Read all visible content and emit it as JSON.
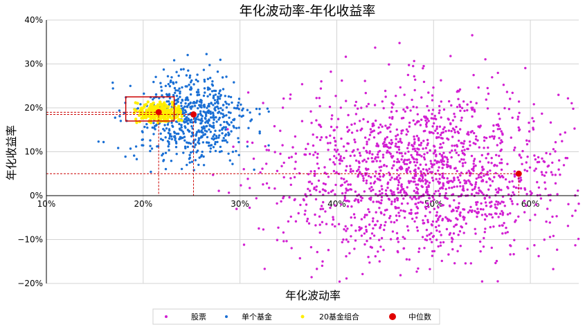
{
  "chart_data": {
    "type": "scatter",
    "title": "年化波动率-年化收益率",
    "xlabel": "年化波动率",
    "ylabel": "年化收益率",
    "xlim": [
      10,
      65
    ],
    "ylim": [
      -20,
      40
    ],
    "x_ticks": [
      10,
      20,
      30,
      40,
      50,
      60
    ],
    "y_ticks": [
      -20,
      -10,
      0,
      10,
      20,
      30,
      40
    ],
    "x_tick_labels": [
      "10%",
      "20%",
      "30%",
      "40%",
      "50%",
      "60%"
    ],
    "y_tick_labels": [
      "−20%",
      "−10%",
      "0%",
      "10%",
      "20%",
      "30%",
      "40%"
    ],
    "grid": true,
    "legend_position": "bottom",
    "series": [
      {
        "name": "股票",
        "color": "#d21fd2",
        "count": 1600,
        "center": [
          49,
          5
        ],
        "spread": [
          7.5,
          9.5
        ],
        "xrange": [
          27,
          65
        ],
        "yrange": [
          -20,
          40
        ]
      },
      {
        "name": "单个基金",
        "color": "#1a6fd4",
        "count": 650,
        "center": [
          25,
          17.5
        ],
        "spread": [
          3,
          5.2
        ],
        "xrange": [
          14,
          33
        ],
        "yrange": [
          1,
          33
        ]
      },
      {
        "name": "20基金组合",
        "color": "#ffee00",
        "count": 260,
        "center": [
          21.7,
          19
        ],
        "spread": [
          1.3,
          1.1
        ],
        "xrange": [
          19,
          24
        ],
        "yrange": [
          16.5,
          21.5
        ]
      },
      {
        "name": "中位数",
        "color": "#e00000",
        "points": [
          [
            21.6,
            19
          ],
          [
            25.2,
            18.5
          ],
          [
            58.8,
            5.0
          ]
        ]
      }
    ],
    "reference_box": {
      "x": [
        18.2,
        23.2
      ],
      "y": [
        17,
        22.5
      ],
      "color": "#cc0000"
    },
    "median_guides": {
      "color": "#cc0000",
      "style": "dashed"
    }
  }
}
